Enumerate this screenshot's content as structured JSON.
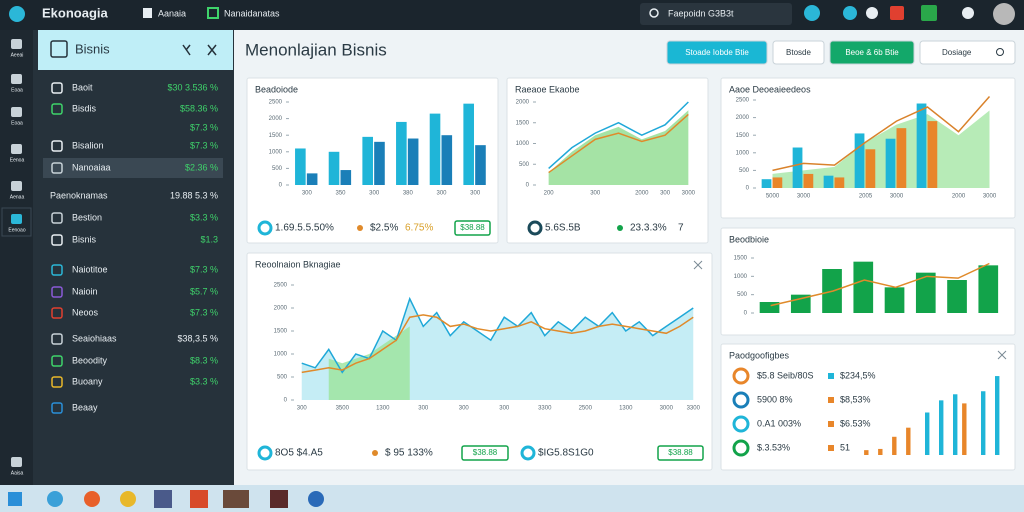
{
  "topbar": {
    "logo": "Ekonoagia",
    "menu": [
      "Aanaia",
      "Nanaidanatas"
    ],
    "search": "Faepoidn G3B3t"
  },
  "rail": [
    "Aeeai",
    "Eoaa",
    "Eoaa",
    "Eenoa",
    "Aenaa",
    "Eenoao",
    "Aaisa"
  ],
  "sidebar": {
    "title": "Bisnis",
    "items": [
      {
        "name": "Baoit",
        "value": "$30 3.536 %"
      },
      {
        "name": "Bisdis",
        "value": "$58.36 %"
      },
      {
        "value": "$7.3 %"
      },
      {
        "name": "Bisalion",
        "value": "$7.3 %"
      },
      {
        "name": "Nanoaiaa",
        "value": "$2.36 %"
      },
      {
        "name": "Paenoknamas",
        "value": "19.88 5.3 %"
      },
      {
        "name": "Bestion",
        "value": "$3.3 %"
      },
      {
        "name": "Bisnis",
        "value": "$1.3"
      },
      {
        "name": "Naiotitoe",
        "value": "$7.3 %"
      },
      {
        "name": "Naioin",
        "value": "$5.7 %"
      },
      {
        "name": "Neoos",
        "value": "$7.3 %"
      },
      {
        "name": "Seaiohiaas",
        "value": "$38,3.5 %"
      },
      {
        "name": "Beoodity",
        "value": "$8.3 %"
      },
      {
        "name": "Buoany",
        "value": "$3.3 %"
      },
      {
        "name": "Beaay"
      }
    ]
  },
  "header": {
    "title": "Menonlajian Bisnis",
    "buttons": [
      "Stoade Iobde Btie",
      "Btosde",
      "Beoe & 6b Btie",
      "Dosiage"
    ]
  },
  "cards": [
    {
      "title": "Beadoiode",
      "footer": [
        "1.69.5.5.50%",
        "$2.5%",
        "6.75%"
      ],
      "badges": [
        "$38.88"
      ],
      "chart": {
        "type": "bar",
        "ylim": [
          0,
          2500
        ],
        "yticks": [
          0,
          500,
          1000,
          1500,
          2000,
          2500
        ],
        "categories": [
          "300",
          "350",
          "300",
          "380",
          "300",
          "300"
        ],
        "series": [
          {
            "type": "bar",
            "color": "#1fb5d8",
            "values": [
              1100,
              1000,
              1450,
              1900,
              2150,
              2450
            ]
          },
          {
            "type": "bar",
            "color": "#1a7fb8",
            "values": [
              350,
              450,
              1300,
              1400,
              1500,
              1200
            ]
          }
        ]
      }
    },
    {
      "title": "Raeaoe Ekaobe",
      "footer": [
        "5.6S.5B",
        "23.3.3%",
        "7"
      ],
      "chart": {
        "type": "line",
        "ylim": [
          0,
          2000
        ],
        "yticks": [
          0,
          500,
          1000,
          1500,
          2000
        ],
        "categories": [
          "200",
          null,
          "300",
          null,
          "2000",
          "300",
          "3000"
        ],
        "series": [
          {
            "type": "area",
            "color": "#8fdc8f",
            "values": [
              300,
              800,
              1200,
              1400,
              1100,
              1300,
              1800
            ]
          },
          {
            "type": "line",
            "color": "#1fa8d8",
            "values": [
              400,
              900,
              1250,
              1500,
              1200,
              1450,
              2000
            ]
          },
          {
            "type": "line",
            "color": "#e08a2a",
            "values": [
              300,
              700,
              1100,
              1250,
              1050,
              1200,
              1700
            ]
          }
        ]
      }
    },
    {
      "title": "Aaoe Deoeaieedeos",
      "chart": {
        "type": "bar",
        "ylim": [
          0,
          2500
        ],
        "yticks": [
          0,
          500,
          1000,
          1500,
          2000,
          2500
        ],
        "categories": [
          "5000",
          "3000",
          null,
          "2005",
          "3000",
          null,
          "2000",
          "3000"
        ],
        "series": [
          {
            "type": "area",
            "color": "#a5e6a5",
            "values": [
              400,
              500,
              600,
              1300,
              1800,
              2100,
              1500,
              2200
            ]
          },
          {
            "type": "bar",
            "color": "#1fb5d8",
            "values": [
              250,
              1150,
              350,
              1550,
              1400,
              2400,
              null,
              null
            ]
          },
          {
            "type": "bar",
            "color": "#e8862a",
            "values": [
              300,
              400,
              300,
              1100,
              1700,
              1900,
              null,
              null
            ]
          },
          {
            "type": "line",
            "color": "#d9822b",
            "values": [
              500,
              700,
              650,
              1300,
              1900,
              2300,
              1600,
              2600
            ]
          }
        ]
      }
    },
    {
      "title": "Reoolnaion Bknagiae",
      "footer": [
        "8O5 $4.A5",
        "$ 95 133%",
        "$IG5.8S1G0"
      ],
      "badges": [
        "$38.88",
        "$38.88"
      ],
      "chart": {
        "type": "line",
        "ylim": [
          0,
          2500
        ],
        "yticks": [
          0,
          500,
          1000,
          1500,
          2000,
          2500
        ],
        "categories": [
          "300",
          null,
          null,
          "3500",
          null,
          null,
          "1300",
          null,
          null,
          "300",
          null,
          null,
          "300",
          null,
          null,
          "300",
          null,
          null,
          "3300",
          null,
          null,
          "2500",
          null,
          null,
          "1300",
          null,
          null,
          "3000",
          null,
          "3300"
        ],
        "series": [
          {
            "type": "area",
            "color": "#b7e9f3",
            "values": [
              800,
              700,
              1100,
              600,
              1000,
              900,
              1500,
              1300,
              2200,
              1600,
              1900,
              1400,
              1700,
              1500,
              1300,
              1800,
              1600,
              1900,
              1400,
              1700,
              1500,
              1800,
              1600,
              1900,
              1500,
              1700,
              1400,
              1600,
              1800,
              2000
            ]
          },
          {
            "type": "area",
            "color": "#9be39b",
            "values": [
              null,
              null,
              900,
              800,
              900,
              1000,
              1200,
              1400,
              1600,
              null,
              null,
              null,
              null,
              null,
              null,
              null,
              null,
              null,
              null,
              null,
              null,
              null,
              null,
              null,
              null,
              null,
              null,
              null,
              null,
              null
            ]
          },
          {
            "type": "line",
            "color": "#1fa8d8",
            "values": [
              800,
              700,
              1100,
              600,
              1000,
              900,
              1500,
              1300,
              2200,
              1600,
              1900,
              1400,
              1700,
              1500,
              1300,
              1800,
              1600,
              1900,
              1400,
              1700,
              1500,
              1800,
              1600,
              1900,
              1500,
              1700,
              1400,
              1600,
              1800,
              2000
            ]
          },
          {
            "type": "line",
            "color": "#e08a2a",
            "values": [
              600,
              650,
              700,
              650,
              800,
              900,
              1100,
              1300,
              1800,
              1850,
              1800,
              1600,
              1650,
              1550,
              1500,
              1550,
              1600,
              1700,
              1550,
              1500,
              1450,
              1500,
              1600,
              1650,
              1600,
              1550,
              1500,
              1450,
              1600,
              1800
            ]
          }
        ]
      }
    },
    {
      "title": "Beodbioie",
      "chart": {
        "type": "bar",
        "ylim": [
          0,
          1500
        ],
        "yticks": [
          0,
          500,
          1000,
          1500
        ],
        "series": [
          {
            "type": "bar",
            "color": "#12a34a",
            "values": [
              300,
              500,
              1200,
              1400,
              700,
              1100,
              900,
              1300
            ]
          },
          {
            "type": "line",
            "color": "#e08a2a",
            "values": [
              200,
              400,
              600,
              900,
              700,
              1000,
              950,
              1350
            ]
          }
        ]
      }
    },
    {
      "title": "Paodgoofigbes",
      "rows": [
        {
          "text": "$5.8 Seib/80S",
          "value": "$234,5%"
        },
        {
          "text": "5900 8%",
          "value": "$8,53%"
        },
        {
          "text": "0.A1 003%",
          "value": "$6.53%"
        },
        {
          "text": "$.3.53%",
          "value": "51"
        }
      ],
      "chart": {
        "type": "bar",
        "ylim": [
          0,
          1400
        ],
        "series": [
          {
            "type": "bar",
            "color": "#e8862a",
            "values": [
              80,
              100,
              300,
              450,
              null,
              null,
              null,
              850,
              null,
              null
            ]
          },
          {
            "type": "bar",
            "color": "#1fb5d8",
            "values": [
              null,
              null,
              null,
              null,
              700,
              900,
              1000,
              null,
              1050,
              1300
            ]
          }
        ]
      }
    }
  ]
}
